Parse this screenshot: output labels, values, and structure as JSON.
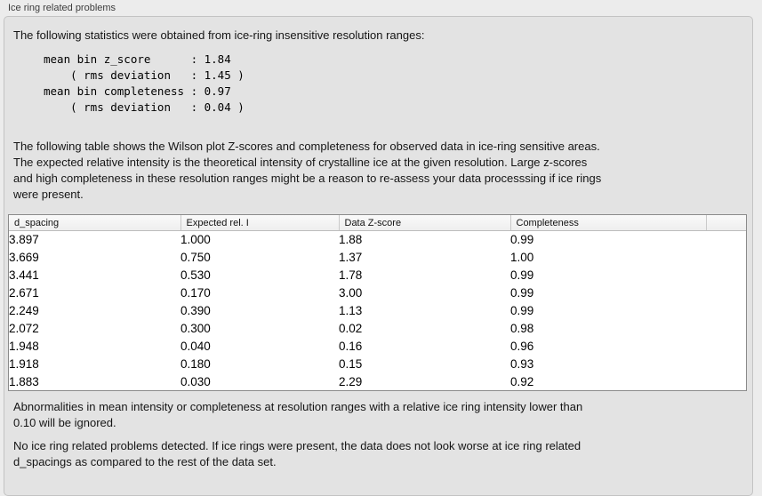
{
  "panel": {
    "title": "Ice ring related problems"
  },
  "intro_text": "The following statistics were obtained from ice-ring insensitive resolution ranges:",
  "stats_block": "mean bin z_score      : 1.84\n    ( rms deviation   : 1.45 )\nmean bin completeness : 0.97\n    ( rms deviation   : 0.04 )",
  "table_intro": "The following table shows the Wilson plot Z-scores and completeness for observed data in ice-ring sensitive areas.\nThe expected relative intensity is the theoretical intensity of crystalline ice at the given resolution. Large z-scores\nand high completeness in these resolution ranges might be a reason to re-assess your data processsing if ice rings\nwere present.",
  "table": {
    "columns": [
      "d_spacing",
      "Expected rel. I",
      "Data Z-score",
      "Completeness"
    ],
    "rows": [
      [
        "3.897",
        "1.000",
        "1.88",
        "0.99"
      ],
      [
        "3.669",
        "0.750",
        "1.37",
        "1.00"
      ],
      [
        "3.441",
        "0.530",
        "1.78",
        "0.99"
      ],
      [
        "2.671",
        "0.170",
        "3.00",
        "0.99"
      ],
      [
        "2.249",
        "0.390",
        "1.13",
        "0.99"
      ],
      [
        "2.072",
        "0.300",
        "0.02",
        "0.98"
      ],
      [
        "1.948",
        "0.040",
        "0.16",
        "0.96"
      ],
      [
        "1.918",
        "0.180",
        "0.15",
        "0.93"
      ],
      [
        "1.883",
        "0.030",
        "2.29",
        "0.92"
      ]
    ]
  },
  "note_text": "Abnormalities in mean intensity or completeness at resolution ranges with a relative ice ring intensity lower than\n0.10 will be ignored.",
  "conclusion_text": "No ice ring related problems detected. If ice rings were present, the data does not look worse at ice ring related\nd_spacings as compared to the rest of the data set.",
  "colors": {
    "outer_background": "#ececec",
    "groupbox_background": "#e3e3e3",
    "groupbox_border": "#c3c3c3",
    "table_border": "#8a8a8a",
    "table_header_background": "#f4f4f4",
    "text": "#111111"
  }
}
